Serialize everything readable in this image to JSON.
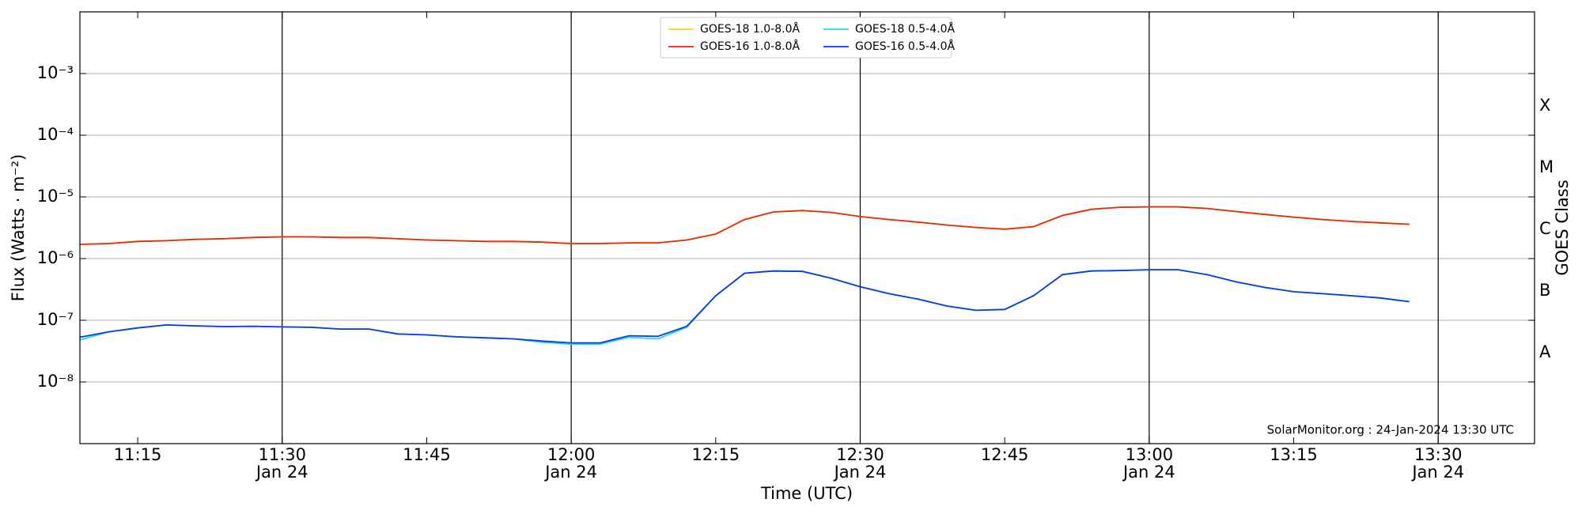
{
  "chart_data": {
    "type": "line",
    "xlabel": "Time (UTC)",
    "ylabel": "Flux (Watts · m⁻²)",
    "y2label": "GOES Class",
    "annotation": "SolarMonitor.org : 24-Jan-2024 13:30 UTC",
    "log_y": true,
    "xgrid": true,
    "ygrid": true,
    "legend": "upper center",
    "xlim": [
      "11:09",
      "13:40"
    ],
    "ylim": [
      1e-09,
      0.01
    ],
    "y2lim": [
      1e-09,
      0.01
    ],
    "xticks": [
      "11:15",
      {
        "value": "11:30",
        "label": [
          "11:30",
          "Jan 24"
        ]
      },
      "11:45",
      {
        "value": "12:00",
        "label": [
          "12:00",
          "Jan 24"
        ]
      },
      "12:15",
      {
        "value": "12:30",
        "label": [
          "12:30",
          "Jan 24"
        ]
      },
      "12:45",
      {
        "value": "13:00",
        "label": [
          "13:00",
          "Jan 24"
        ]
      },
      "13:15",
      {
        "value": "13:30",
        "label": [
          "13:30",
          "Jan 24"
        ]
      }
    ],
    "yticks": [
      {
        "value": 1e-08,
        "label": "10⁻⁸"
      },
      {
        "value": 1e-07,
        "label": "10⁻⁷"
      },
      {
        "value": 1e-06,
        "label": "10⁻⁶"
      },
      {
        "value": 1e-05,
        "label": "10⁻⁵"
      },
      {
        "value": 0.0001,
        "label": "10⁻⁴"
      },
      {
        "value": 0.001,
        "label": "10⁻³"
      }
    ],
    "y2ticks": [
      {
        "value": 3e-08,
        "label": "A"
      },
      {
        "value": 3e-07,
        "label": "B"
      },
      {
        "value": 3e-06,
        "label": "C"
      },
      {
        "value": 3e-05,
        "label": "M"
      },
      {
        "value": 0.0003,
        "label": "X"
      }
    ],
    "x": [
      "11:09",
      "11:12",
      "11:15",
      "11:18",
      "11:21",
      "11:24",
      "11:27",
      "11:30",
      "11:33",
      "11:36",
      "11:39",
      "11:42",
      "11:45",
      "11:48",
      "11:51",
      "11:54",
      "11:57",
      "12:00",
      "12:03",
      "12:06",
      "12:09",
      "12:12",
      "12:15",
      "12:18",
      "12:21",
      "12:24",
      "12:27",
      "12:30",
      "12:33",
      "12:36",
      "12:39",
      "12:42",
      "12:45",
      "12:48",
      "12:51",
      "12:54",
      "12:57",
      "13:00",
      "13:03",
      "13:06",
      "13:09",
      "13:12",
      "13:15",
      "13:18",
      "13:21",
      "13:24",
      "13:27"
    ],
    "series": [
      {
        "name": "GOES-18 1.0-8.0Å",
        "color": "#ffd700",
        "values": [
          1.7e-06,
          1.75e-06,
          1.9e-06,
          1.95e-06,
          2.05e-06,
          2.1e-06,
          2.2e-06,
          2.25e-06,
          2.25e-06,
          2.2e-06,
          2.2e-06,
          2.1e-06,
          2e-06,
          1.95e-06,
          1.9e-06,
          1.9e-06,
          1.85e-06,
          1.75e-06,
          1.75e-06,
          1.8e-06,
          1.8e-06,
          2e-06,
          2.5e-06,
          4.3e-06,
          5.7e-06,
          6e-06,
          5.6e-06,
          4.8e-06,
          4.3e-06,
          3.9e-06,
          3.5e-06,
          3.2e-06,
          3e-06,
          3.3e-06,
          5e-06,
          6.3e-06,
          6.8e-06,
          6.9e-06,
          6.9e-06,
          6.5e-06,
          5.8e-06,
          5.2e-06,
          4.7e-06,
          4.3e-06,
          4e-06,
          3.8e-06,
          3.6e-06
        ]
      },
      {
        "name": "GOES-16 1.0-8.0Å",
        "color": "#e62a0a",
        "values": [
          1.7e-06,
          1.75e-06,
          1.9e-06,
          1.95e-06,
          2.05e-06,
          2.1e-06,
          2.2e-06,
          2.25e-06,
          2.25e-06,
          2.2e-06,
          2.2e-06,
          2.1e-06,
          2e-06,
          1.95e-06,
          1.9e-06,
          1.9e-06,
          1.85e-06,
          1.75e-06,
          1.75e-06,
          1.8e-06,
          1.8e-06,
          2e-06,
          2.5e-06,
          4.3e-06,
          5.7e-06,
          6e-06,
          5.6e-06,
          4.8e-06,
          4.3e-06,
          3.9e-06,
          3.5e-06,
          3.2e-06,
          3e-06,
          3.3e-06,
          5e-06,
          6.3e-06,
          6.8e-06,
          6.9e-06,
          6.9e-06,
          6.5e-06,
          5.8e-06,
          5.2e-06,
          4.7e-06,
          4.3e-06,
          4e-06,
          3.8e-06,
          3.6e-06
        ]
      },
      {
        "name": "GOES-18 0.5-4.0Å",
        "color": "#22d8f0",
        "values": [
          4.8e-08,
          6.5e-08,
          7.5e-08,
          8.4e-08,
          8.1e-08,
          7.9e-08,
          8e-08,
          7.8e-08,
          7.7e-08,
          7.2e-08,
          7.2e-08,
          6e-08,
          5.8e-08,
          5.4e-08,
          5.2e-08,
          5e-08,
          4.4e-08,
          4.1e-08,
          4.1e-08,
          5.3e-08,
          5e-08,
          7.7e-08,
          2.5e-07,
          5.8e-07,
          6.3e-07,
          6.2e-07,
          4.8e-07,
          3.5e-07,
          2.7e-07,
          2.2e-07,
          1.7e-07,
          1.45e-07,
          1.5e-07,
          2.5e-07,
          5.5e-07,
          6.3e-07,
          6.4e-07,
          6.6e-07,
          6.6e-07,
          5.5e-07,
          4.2e-07,
          3.4e-07,
          2.9e-07,
          2.7e-07,
          2.5e-07,
          2.3e-07,
          2e-07
        ]
      },
      {
        "name": "GOES-16 0.5-4.0Å",
        "color": "#0a3ce0",
        "values": [
          5.3e-08,
          6.5e-08,
          7.5e-08,
          8.4e-08,
          8.1e-08,
          7.9e-08,
          8e-08,
          7.8e-08,
          7.7e-08,
          7.2e-08,
          7.2e-08,
          6e-08,
          5.8e-08,
          5.4e-08,
          5.2e-08,
          5e-08,
          4.6e-08,
          4.3e-08,
          4.3e-08,
          5.6e-08,
          5.5e-08,
          8e-08,
          2.5e-07,
          5.8e-07,
          6.3e-07,
          6.2e-07,
          4.8e-07,
          3.5e-07,
          2.7e-07,
          2.2e-07,
          1.7e-07,
          1.45e-07,
          1.5e-07,
          2.5e-07,
          5.5e-07,
          6.3e-07,
          6.4e-07,
          6.6e-07,
          6.6e-07,
          5.5e-07,
          4.2e-07,
          3.4e-07,
          2.9e-07,
          2.7e-07,
          2.5e-07,
          2.3e-07,
          2e-07
        ]
      }
    ]
  }
}
